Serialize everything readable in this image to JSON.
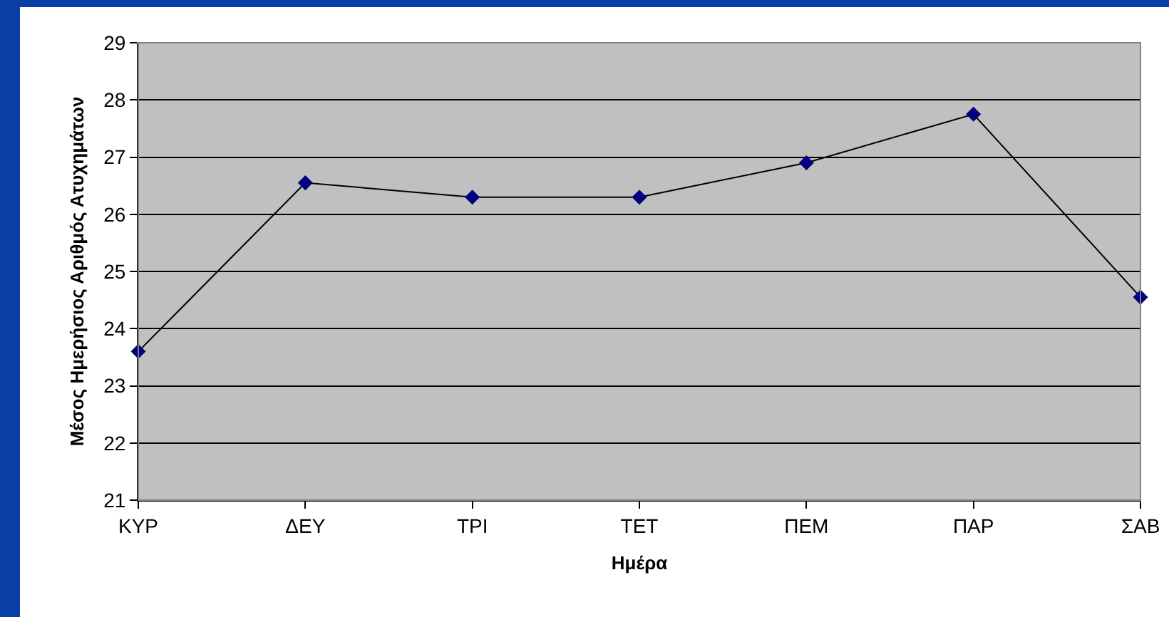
{
  "chart_data": {
    "type": "line",
    "xlabel": "Ημέρα",
    "ylabel": "Μέσος Ημερήσιος Αριθμός Ατυχημάτων",
    "categories": [
      "ΚΥΡ",
      "ΔΕΥ",
      "ΤΡΙ",
      "ΤΕΤ",
      "ΠΕΜ",
      "ΠΑΡ",
      "ΣΑΒ"
    ],
    "series": [
      {
        "color": "#000080",
        "values": [
          23.6,
          26.55,
          26.3,
          26.3,
          26.9,
          27.75,
          24.55
        ]
      }
    ],
    "ylim": [
      21,
      29
    ],
    "yticks": [
      21,
      22,
      23,
      24,
      25,
      26,
      27,
      28,
      29
    ],
    "grid": "y",
    "marker": "diamond",
    "line_style": "solid"
  }
}
